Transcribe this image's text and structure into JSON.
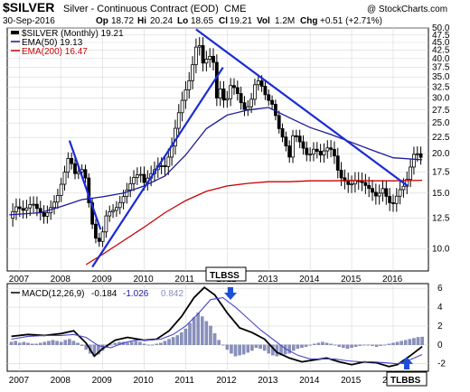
{
  "header": {
    "symbol": "$SILVER",
    "description": "Silver - Continuous Contract (EOD)",
    "exchange": "CME",
    "date": "30-Sep-2016",
    "open_label": "Op",
    "open": "18.72",
    "high_label": "Hi",
    "high": "20.24",
    "low_label": "Lo",
    "low": "18.65",
    "close_label": "Cl",
    "close": "19.21",
    "volume_label": "Vol",
    "volume": "1.2M",
    "change_label": "Chg",
    "change": "+0.51 (+2.71%)",
    "watermark": "@ StockCharts.com"
  },
  "legend": {
    "price": "$SILVER (Monthly) 19.21",
    "ema50": "EMA(50) 19.13",
    "ema200": "EMA(200) 16.47"
  },
  "macd_legend": {
    "label": "MACD(12,26,9)",
    "v1": "-0.184",
    "v2": "-1.026",
    "v3": "0.842"
  },
  "annotations": {
    "top": "TLBSS",
    "bottom": "TLBBS"
  },
  "colors": {
    "candle": "#000000",
    "ema50": "#1a1a99",
    "ema200": "#cc0000",
    "trendline": "#1a2bd6",
    "histogram": "#8890bf",
    "macd_line": "#000000",
    "signal_line": "#4747c8",
    "arrow": "#1e4fd8",
    "grid": "#d7d7d7"
  },
  "chart_data": [
    {
      "type": "candlestick",
      "title": "$SILVER (Monthly) 19.21",
      "y_scale": "log",
      "ylim": [
        8.5,
        50
      ],
      "yticks": [
        "10.0",
        "12.5",
        "15.0",
        "17.5",
        "20.0",
        "22.5",
        "25.0",
        "27.5",
        "30.0",
        "32.5",
        "35.0",
        "37.5",
        "40.0",
        "42.5",
        "45.0",
        "47.5",
        "50.0"
      ],
      "xlim": [
        2006.7,
        2016.85
      ],
      "xticks": [
        "2007",
        "2008",
        "2009",
        "2010",
        "2011",
        "2012",
        "2013",
        "2014",
        "2015",
        "2016"
      ],
      "grid": true,
      "legend_position": "top-left",
      "price_path": [
        [
          2006.75,
          12.5
        ],
        [
          2006.9,
          13.6
        ],
        [
          2007.1,
          13.2
        ],
        [
          2007.3,
          14.0
        ],
        [
          2007.5,
          13.0
        ],
        [
          2007.6,
          12.6
        ],
        [
          2007.75,
          13.5
        ],
        [
          2007.9,
          14.5
        ],
        [
          2008.05,
          16.8
        ],
        [
          2008.2,
          20.1
        ],
        [
          2008.3,
          17.2
        ],
        [
          2008.45,
          17.6
        ],
        [
          2008.55,
          18.0
        ],
        [
          2008.7,
          13.0
        ],
        [
          2008.8,
          11.0
        ],
        [
          2008.9,
          10.4
        ],
        [
          2009.0,
          11.3
        ],
        [
          2009.1,
          13.0
        ],
        [
          2009.3,
          13.3
        ],
        [
          2009.45,
          14.2
        ],
        [
          2009.6,
          15.5
        ],
        [
          2009.75,
          16.8
        ],
        [
          2009.9,
          17.4
        ],
        [
          2010.0,
          16.2
        ],
        [
          2010.2,
          17.5
        ],
        [
          2010.35,
          18.4
        ],
        [
          2010.5,
          18.2
        ],
        [
          2010.65,
          20.6
        ],
        [
          2010.8,
          26.0
        ],
        [
          2010.95,
          30.6
        ],
        [
          2011.1,
          34.5
        ],
        [
          2011.3,
          47.0
        ],
        [
          2011.4,
          38.5
        ],
        [
          2011.55,
          40.5
        ],
        [
          2011.65,
          41.0
        ],
        [
          2011.75,
          30.0
        ],
        [
          2011.85,
          32.5
        ],
        [
          2011.95,
          28.2
        ],
        [
          2012.1,
          33.5
        ],
        [
          2012.25,
          31.0
        ],
        [
          2012.4,
          27.5
        ],
        [
          2012.55,
          28.5
        ],
        [
          2012.7,
          34.5
        ],
        [
          2012.8,
          33.5
        ],
        [
          2012.95,
          30.0
        ],
        [
          2013.1,
          28.5
        ],
        [
          2013.25,
          24.0
        ],
        [
          2013.4,
          21.5
        ],
        [
          2013.5,
          19.5
        ],
        [
          2013.6,
          23.5
        ],
        [
          2013.75,
          21.8
        ],
        [
          2013.95,
          19.5
        ],
        [
          2014.1,
          20.8
        ],
        [
          2014.25,
          19.8
        ],
        [
          2014.4,
          20.9
        ],
        [
          2014.55,
          20.5
        ],
        [
          2014.7,
          17.0
        ],
        [
          2014.85,
          16.3
        ],
        [
          2014.95,
          15.8
        ],
        [
          2015.1,
          16.5
        ],
        [
          2015.25,
          16.2
        ],
        [
          2015.4,
          15.6
        ],
        [
          2015.6,
          14.6
        ],
        [
          2015.75,
          15.5
        ],
        [
          2015.9,
          14.0
        ],
        [
          2016.0,
          13.9
        ],
        [
          2016.15,
          15.3
        ],
        [
          2016.3,
          16.0
        ],
        [
          2016.4,
          17.8
        ],
        [
          2016.5,
          19.9
        ],
        [
          2016.6,
          20.0
        ],
        [
          2016.7,
          19.2
        ]
      ],
      "series": [
        {
          "name": "EMA(50) 19.13",
          "points": [
            [
              2006.75,
              12.8
            ],
            [
              2007.5,
              13.0
            ],
            [
              2008.0,
              13.6
            ],
            [
              2008.5,
              14.3
            ],
            [
              2009.0,
              14.6
            ],
            [
              2009.5,
              15.0
            ],
            [
              2010.0,
              15.8
            ],
            [
              2010.5,
              17.0
            ],
            [
              2011.0,
              19.8
            ],
            [
              2011.5,
              24.0
            ],
            [
              2012.0,
              26.5
            ],
            [
              2012.5,
              27.5
            ],
            [
              2013.0,
              28.0
            ],
            [
              2013.5,
              26.0
            ],
            [
              2014.0,
              24.2
            ],
            [
              2014.5,
              23.0
            ],
            [
              2015.0,
              21.7
            ],
            [
              2015.5,
              20.5
            ],
            [
              2016.0,
              19.4
            ],
            [
              2016.7,
              19.13
            ]
          ]
        },
        {
          "name": "EMA(200) 16.47",
          "points": [
            [
              2008.6,
              8.9
            ],
            [
              2009.0,
              9.6
            ],
            [
              2009.5,
              10.6
            ],
            [
              2010.0,
              11.7
            ],
            [
              2010.5,
              13.0
            ],
            [
              2011.0,
              14.2
            ],
            [
              2011.5,
              15.2
            ],
            [
              2012.0,
              15.8
            ],
            [
              2012.5,
              16.1
            ],
            [
              2013.0,
              16.3
            ],
            [
              2013.5,
              16.3
            ],
            [
              2014.0,
              16.4
            ],
            [
              2014.5,
              16.4
            ],
            [
              2015.0,
              16.45
            ],
            [
              2015.5,
              16.4
            ],
            [
              2016.0,
              16.4
            ],
            [
              2016.7,
              16.47
            ]
          ]
        }
      ],
      "trendlines": [
        [
          [
            2008.2,
            22.0
          ],
          [
            2008.95,
            11.5
          ]
        ],
        [
          [
            2008.75,
            8.75
          ],
          [
            2011.9,
            37.5
          ]
        ],
        [
          [
            2011.25,
            49.5
          ],
          [
            2016.35,
            15.8
          ]
        ]
      ]
    },
    {
      "type": "bar",
      "title": "MACD(12,26,9) -0.184, -1.026, 0.842",
      "ylim": [
        -2.8,
        6.5
      ],
      "yticks": [
        "-2",
        "0",
        "2",
        "4",
        "6"
      ],
      "xlim": [
        2006.7,
        2016.85
      ],
      "xticks": [
        "2007",
        "2008",
        "2009",
        "2010",
        "2011",
        "2012",
        "2013",
        "2014",
        "2015",
        "2016"
      ],
      "histogram": [
        [
          2006.8,
          0.3
        ],
        [
          2006.9,
          0.4
        ],
        [
          2007.0,
          0.2
        ],
        [
          2007.1,
          0.3
        ],
        [
          2007.2,
          0.2
        ],
        [
          2007.3,
          0.1
        ],
        [
          2007.4,
          0.1
        ],
        [
          2007.5,
          0.2
        ],
        [
          2007.6,
          0.3
        ],
        [
          2007.7,
          0.4
        ],
        [
          2007.8,
          0.5
        ],
        [
          2007.9,
          0.4
        ],
        [
          2008.0,
          0.3
        ],
        [
          2008.1,
          0.5
        ],
        [
          2008.2,
          0.6
        ],
        [
          2008.3,
          0.4
        ],
        [
          2008.4,
          0.2
        ],
        [
          2008.5,
          -0.1
        ],
        [
          2008.6,
          -0.5
        ],
        [
          2008.7,
          -0.9
        ],
        [
          2008.8,
          -1.2
        ],
        [
          2008.9,
          -1.0
        ],
        [
          2009.0,
          -0.6
        ],
        [
          2009.1,
          -0.3
        ],
        [
          2009.2,
          0.0
        ],
        [
          2009.3,
          0.2
        ],
        [
          2009.4,
          0.3
        ],
        [
          2009.5,
          0.3
        ],
        [
          2009.6,
          0.2
        ],
        [
          2009.7,
          0.3
        ],
        [
          2009.8,
          0.4
        ],
        [
          2009.9,
          0.3
        ],
        [
          2010.0,
          0.1
        ],
        [
          2010.1,
          0.0
        ],
        [
          2010.2,
          0.0
        ],
        [
          2010.3,
          0.1
        ],
        [
          2010.4,
          0.2
        ],
        [
          2010.5,
          0.4
        ],
        [
          2010.6,
          0.6
        ],
        [
          2010.7,
          0.8
        ],
        [
          2010.8,
          1.0
        ],
        [
          2010.9,
          1.3
        ],
        [
          2011.0,
          1.7
        ],
        [
          2011.1,
          2.3
        ],
        [
          2011.2,
          2.9
        ],
        [
          2011.3,
          3.4
        ],
        [
          2011.4,
          3.0
        ],
        [
          2011.5,
          2.5
        ],
        [
          2011.6,
          2.0
        ],
        [
          2011.7,
          1.2
        ],
        [
          2011.8,
          0.5
        ],
        [
          2011.9,
          0.0
        ],
        [
          2012.0,
          -0.5
        ],
        [
          2012.1,
          -0.9
        ],
        [
          2012.2,
          -1.2
        ],
        [
          2012.3,
          -1.1
        ],
        [
          2012.4,
          -1.0
        ],
        [
          2012.5,
          -0.8
        ],
        [
          2012.6,
          -0.6
        ],
        [
          2012.7,
          -0.3
        ],
        [
          2012.8,
          -0.4
        ],
        [
          2012.9,
          -0.6
        ],
        [
          2013.0,
          -0.9
        ],
        [
          2013.1,
          -1.1
        ],
        [
          2013.2,
          -1.2
        ],
        [
          2013.3,
          -1.1
        ],
        [
          2013.4,
          -1.0
        ],
        [
          2013.5,
          -0.9
        ],
        [
          2013.6,
          -0.6
        ],
        [
          2013.7,
          -0.4
        ],
        [
          2013.8,
          -0.3
        ],
        [
          2013.9,
          -0.2
        ],
        [
          2014.0,
          0.0
        ],
        [
          2014.1,
          0.1
        ],
        [
          2014.2,
          0.2
        ],
        [
          2014.3,
          0.3
        ],
        [
          2014.4,
          0.2
        ],
        [
          2014.5,
          0.1
        ],
        [
          2014.6,
          0.0
        ],
        [
          2014.7,
          -0.2
        ],
        [
          2014.8,
          -0.3
        ],
        [
          2014.9,
          -0.4
        ],
        [
          2015.0,
          -0.3
        ],
        [
          2015.1,
          -0.2
        ],
        [
          2015.2,
          -0.1
        ],
        [
          2015.3,
          0.0
        ],
        [
          2015.4,
          0.0
        ],
        [
          2015.5,
          -0.1
        ],
        [
          2015.6,
          -0.2
        ],
        [
          2015.7,
          -0.1
        ],
        [
          2015.8,
          0.0
        ],
        [
          2015.9,
          0.1
        ],
        [
          2016.0,
          0.2
        ],
        [
          2016.1,
          0.3
        ],
        [
          2016.2,
          0.4
        ],
        [
          2016.3,
          0.5
        ],
        [
          2016.4,
          0.6
        ],
        [
          2016.5,
          0.7
        ],
        [
          2016.6,
          0.8
        ],
        [
          2016.7,
          0.84
        ]
      ],
      "series": [
        {
          "name": "MACD",
          "points": [
            [
              2006.8,
              0.9
            ],
            [
              2007.2,
              1.1
            ],
            [
              2007.6,
              1.0
            ],
            [
              2008.0,
              1.2
            ],
            [
              2008.3,
              1.5
            ],
            [
              2008.6,
              0.2
            ],
            [
              2008.8,
              -1.2
            ],
            [
              2009.0,
              -0.4
            ],
            [
              2009.3,
              0.5
            ],
            [
              2009.6,
              0.8
            ],
            [
              2010.0,
              0.5
            ],
            [
              2010.3,
              0.6
            ],
            [
              2010.6,
              1.5
            ],
            [
              2010.9,
              3.0
            ],
            [
              2011.2,
              5.0
            ],
            [
              2011.45,
              6.1
            ],
            [
              2011.7,
              5.3
            ],
            [
              2012.0,
              3.4
            ],
            [
              2012.3,
              1.8
            ],
            [
              2012.6,
              1.3
            ],
            [
              2012.9,
              0.6
            ],
            [
              2013.2,
              -0.8
            ],
            [
              2013.5,
              -1.4
            ],
            [
              2013.8,
              -1.8
            ],
            [
              2014.1,
              -1.6
            ],
            [
              2014.4,
              -1.4
            ],
            [
              2014.7,
              -1.8
            ],
            [
              2015.0,
              -2.1
            ],
            [
              2015.3,
              -1.8
            ],
            [
              2015.6,
              -1.9
            ],
            [
              2015.9,
              -2.3
            ],
            [
              2016.1,
              -2.1
            ],
            [
              2016.4,
              -1.2
            ],
            [
              2016.7,
              -0.184
            ]
          ]
        },
        {
          "name": "Signal",
          "points": [
            [
              2006.8,
              0.6
            ],
            [
              2007.2,
              0.9
            ],
            [
              2007.6,
              1.0
            ],
            [
              2008.0,
              1.0
            ],
            [
              2008.3,
              1.1
            ],
            [
              2008.6,
              0.8
            ],
            [
              2008.9,
              -0.1
            ],
            [
              2009.2,
              -0.3
            ],
            [
              2009.5,
              0.2
            ],
            [
              2009.8,
              0.5
            ],
            [
              2010.1,
              0.5
            ],
            [
              2010.4,
              0.6
            ],
            [
              2010.7,
              1.1
            ],
            [
              2011.0,
              2.0
            ],
            [
              2011.3,
              3.3
            ],
            [
              2011.6,
              4.8
            ],
            [
              2011.9,
              5.0
            ],
            [
              2012.2,
              4.0
            ],
            [
              2012.5,
              2.8
            ],
            [
              2012.8,
              1.6
            ],
            [
              2013.1,
              0.6
            ],
            [
              2013.4,
              -0.4
            ],
            [
              2013.7,
              -1.1
            ],
            [
              2014.0,
              -1.5
            ],
            [
              2014.3,
              -1.5
            ],
            [
              2014.6,
              -1.5
            ],
            [
              2014.9,
              -1.7
            ],
            [
              2015.2,
              -1.8
            ],
            [
              2015.5,
              -1.8
            ],
            [
              2015.8,
              -1.9
            ],
            [
              2016.1,
              -2.0
            ],
            [
              2016.4,
              -1.6
            ],
            [
              2016.7,
              -1.026
            ]
          ]
        }
      ]
    }
  ]
}
